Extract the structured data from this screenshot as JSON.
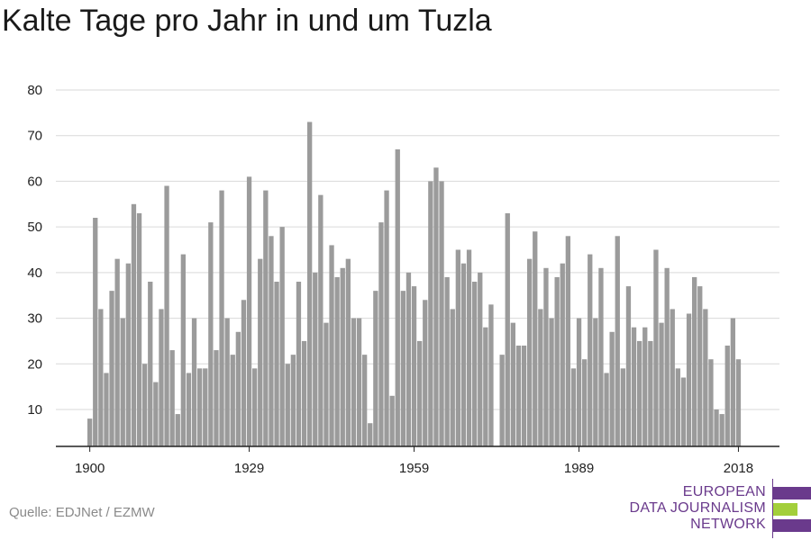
{
  "title": "Kalte Tage pro Jahr in und um Tuzla",
  "source": "Quelle: EDJNet / EZMW",
  "logo": {
    "lines": [
      "EUROPEAN",
      "DATA JOURNALISM",
      "NETWORK"
    ],
    "colors": {
      "purple": "#6a3a8c",
      "green": "#a3cf3b"
    }
  },
  "colors": {
    "bar": "#9b9b9b",
    "grid": "#d9d9d9",
    "axis": "#222222"
  },
  "chart_data": {
    "type": "bar",
    "title": "Kalte Tage pro Jahr in und um Tuzla",
    "xlabel": "",
    "ylabel": "",
    "x_start": 1900,
    "x_ticks": [
      1900,
      1929,
      1959,
      1989,
      2018
    ],
    "y_ticks": [
      10,
      20,
      30,
      40,
      50,
      60,
      70,
      80
    ],
    "ylim": [
      2,
      80
    ],
    "grid": true,
    "values": [
      8,
      52,
      32,
      18,
      36,
      43,
      30,
      42,
      55,
      53,
      20,
      38,
      16,
      32,
      59,
      23,
      9,
      44,
      18,
      30,
      19,
      19,
      51,
      23,
      58,
      30,
      22,
      27,
      34,
      61,
      19,
      43,
      58,
      48,
      38,
      50,
      20,
      22,
      38,
      25,
      73,
      40,
      57,
      29,
      46,
      39,
      41,
      43,
      30,
      30,
      22,
      7,
      36,
      51,
      58,
      13,
      67,
      36,
      40,
      37,
      25,
      34,
      60,
      63,
      60,
      39,
      32,
      45,
      42,
      45,
      38,
      40,
      28,
      33,
      0,
      22,
      53,
      29,
      24,
      24,
      43,
      49,
      32,
      41,
      30,
      39,
      42,
      48,
      19,
      30,
      21,
      44,
      30,
      41,
      18,
      27,
      48,
      19,
      37,
      28,
      25,
      28,
      25,
      45,
      29,
      41,
      32,
      19,
      17,
      31,
      39,
      37,
      32,
      21,
      10,
      9,
      24,
      30,
      21
    ]
  }
}
